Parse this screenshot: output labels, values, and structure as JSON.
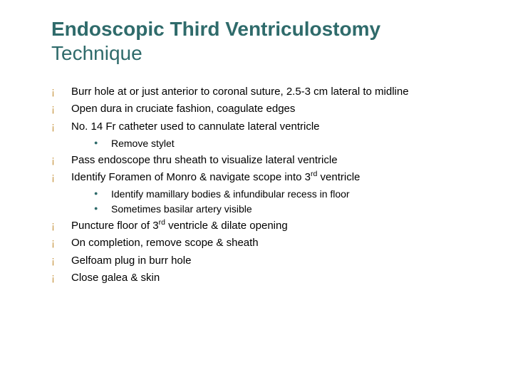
{
  "title": {
    "line1": "Endoscopic Third Ventriculostomy",
    "line2": "Technique",
    "color": "#2f6b6b",
    "fontsize": 28
  },
  "bullets": {
    "level1_marker_color": "#c99a4a",
    "level2_marker_color": "#2f6b6b",
    "body_fontsize": 15,
    "sub_fontsize": 14,
    "text_color": "#000000",
    "items": [
      {
        "text": "Burr hole at or just anterior to coronal suture, 2.5-3 cm lateral to midline"
      },
      {
        "text": "Open dura in cruciate fashion, coagulate edges"
      },
      {
        "text": "No. 14 Fr catheter used to cannulate lateral ventricle",
        "sub": [
          {
            "text": "Remove stylet"
          }
        ]
      },
      {
        "text": "Pass endoscope thru sheath to visualize lateral ventricle"
      },
      {
        "text_html": "Identify Foramen of Monro & navigate scope into 3<sup>rd</sup> ventricle",
        "sub": [
          {
            "text": "Identify mamillary bodies & infundibular recess in floor"
          },
          {
            "text": "Sometimes basilar artery visible"
          }
        ]
      },
      {
        "text_html": "Puncture floor of 3<sup>rd</sup> ventricle & dilate opening"
      },
      {
        "text": "On completion, remove scope & sheath"
      },
      {
        "text": "Gelfoam plug in burr hole"
      },
      {
        "text": "Close galea & skin"
      }
    ]
  },
  "background_color": "#ffffff"
}
